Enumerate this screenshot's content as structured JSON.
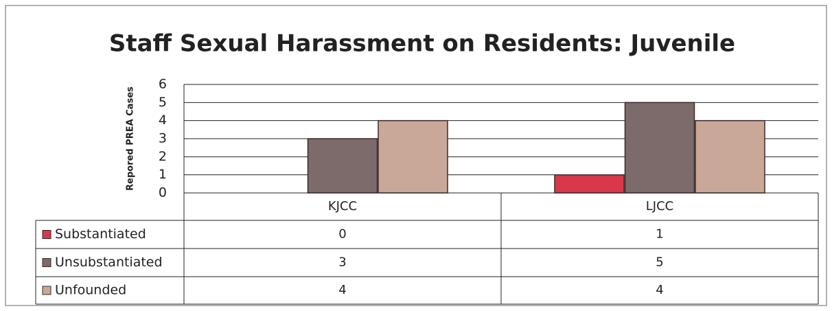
{
  "chart_data": {
    "type": "bar",
    "title": "Staff Sexual Harassment on Residents:  Juvenile",
    "y_label": "Repored PREA Cases",
    "categories": [
      "KJCC",
      "LJCC"
    ],
    "series": [
      {
        "name": "Substantiated",
        "color": "#d9384a",
        "values": [
          0,
          1
        ]
      },
      {
        "name": "Unsubstantiated",
        "color": "#7d6b6b",
        "values": [
          3,
          5
        ]
      },
      {
        "name": "Unfounded",
        "color": "#c9a898",
        "values": [
          4,
          4
        ]
      }
    ],
    "ylim": [
      0,
      6
    ],
    "yticks": [
      0,
      1,
      2,
      3,
      4,
      5,
      6
    ],
    "grid": true
  }
}
